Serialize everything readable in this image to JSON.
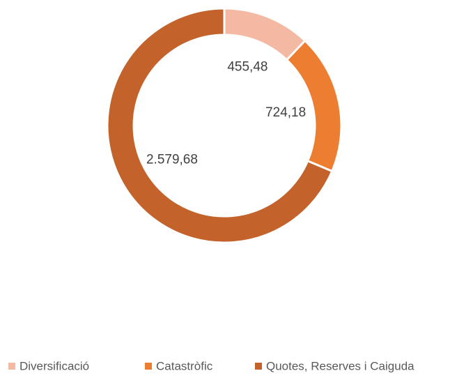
{
  "chart_data": {
    "type": "donut",
    "categories": [
      "Diversificació",
      "Catastròfic",
      "Quotes, Reserves i Caiguda"
    ],
    "values": [
      455.48,
      724.18,
      2579.68
    ],
    "value_labels": [
      "455,48",
      "724,18",
      "2.579,68"
    ],
    "colors": [
      "#f4b9a2",
      "#ed7d31",
      "#c4622b"
    ],
    "legend": "bottom"
  }
}
